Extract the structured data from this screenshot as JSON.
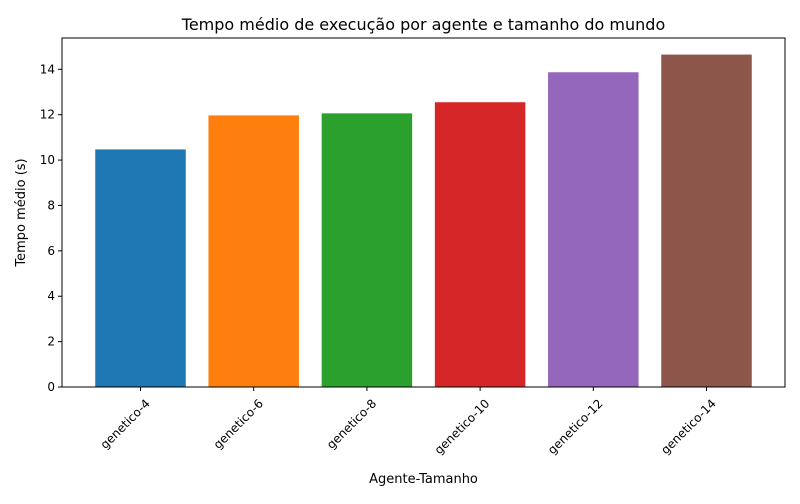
{
  "chart_data": {
    "type": "bar",
    "title": "Tempo médio de execução por agente e tamanho do mundo",
    "xlabel": "Agente-Tamanho",
    "ylabel": "Tempo médio (s)",
    "categories": [
      "genetico-4",
      "genetico-6",
      "genetico-8",
      "genetico-10",
      "genetico-12",
      "genetico-14"
    ],
    "values": [
      10.47,
      11.97,
      12.06,
      12.55,
      13.87,
      14.65
    ],
    "colors": [
      "#1f77b4",
      "#ff7f0e",
      "#2ca02c",
      "#d62728",
      "#9467bd",
      "#8c564b"
    ],
    "ylim": [
      0,
      15.38
    ],
    "yticks": [
      0,
      2,
      4,
      6,
      8,
      10,
      12,
      14
    ],
    "grid": false,
    "legend": "none"
  }
}
